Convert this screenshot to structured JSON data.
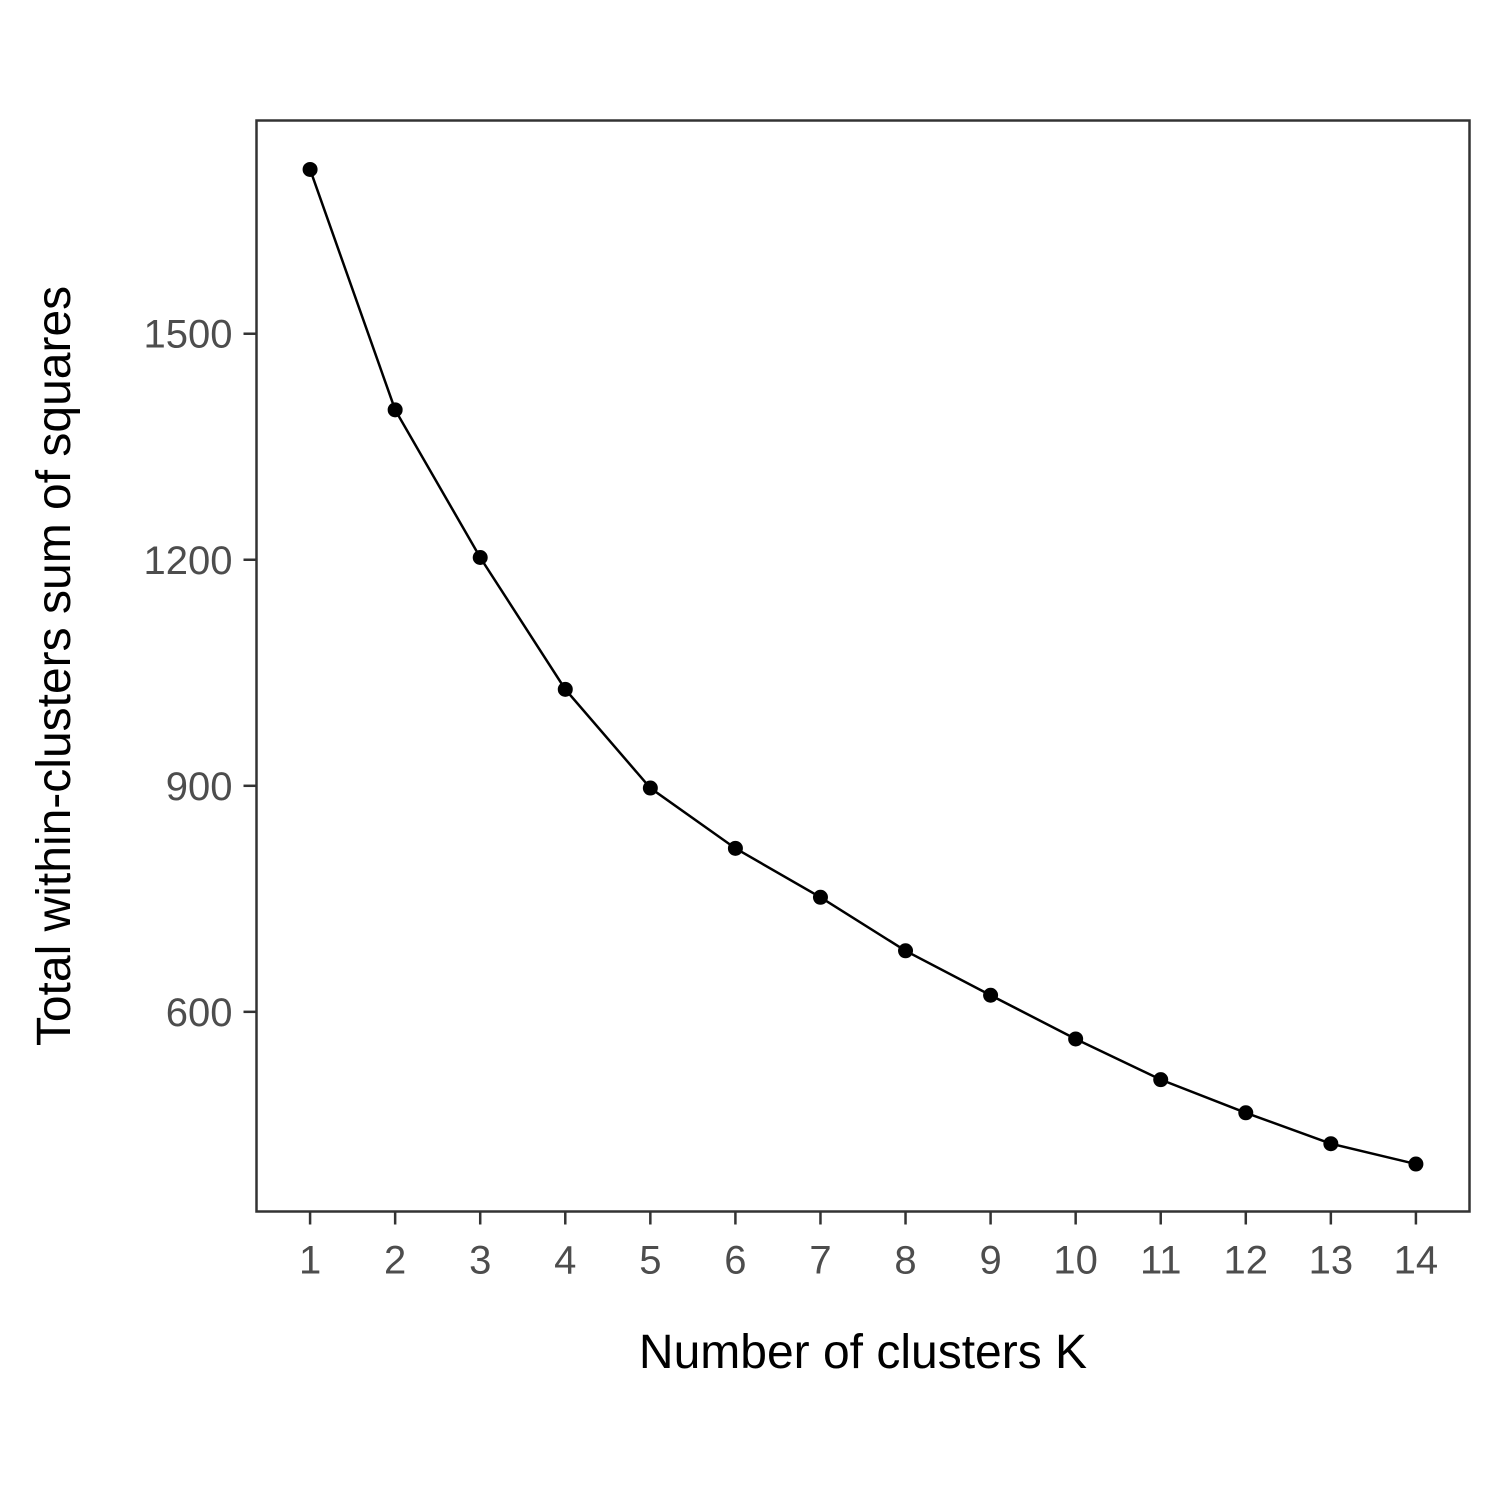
{
  "chart_data": {
    "type": "line",
    "title": "",
    "xlabel": "Number of clusters K",
    "ylabel": "Total within-clusters sum of squares",
    "x": [
      1,
      2,
      3,
      4,
      5,
      6,
      7,
      8,
      9,
      10,
      11,
      12,
      13,
      14
    ],
    "series": [
      {
        "values": [
          1718,
          1399,
          1203,
          1028,
          897,
          817,
          752,
          681,
          622,
          564,
          510,
          466,
          425,
          398
        ]
      }
    ],
    "xticks": [
      "1",
      "2",
      "3",
      "4",
      "5",
      "6",
      "7",
      "8",
      "9",
      "10",
      "11",
      "12",
      "13",
      "14"
    ],
    "yticks": [
      "600",
      "900",
      "1200",
      "1500"
    ],
    "xlim": [
      0.37,
      14.63
    ],
    "ylim": [
      335,
      1783
    ],
    "grid": false,
    "legend": "none",
    "colors": {
      "line": "#000000",
      "point": "#000000",
      "axis": "#333333",
      "tick_text": "#4d4d4d"
    }
  }
}
